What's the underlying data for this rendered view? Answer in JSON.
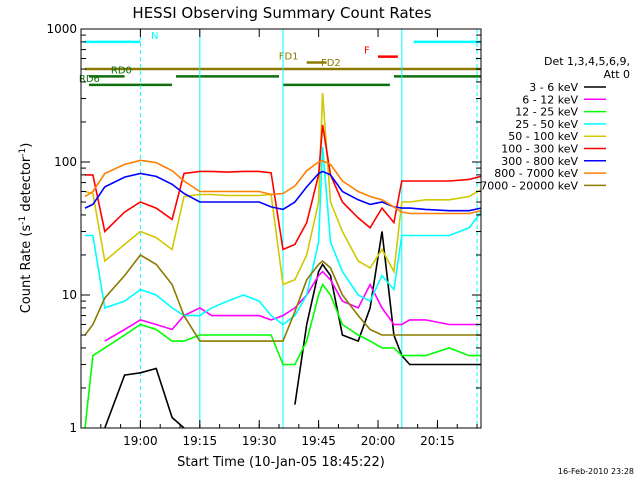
{
  "chart_data": {
    "type": "line",
    "title": "HESSI Observing Summary Count Rates",
    "xlabel": "Start Time (10-Jan-05 18:45:22)",
    "ylabel": "Count Rate (s",
    "ylabel_sup1": "-1",
    "ylabel_mid": " detector",
    "ylabel_sup2": "-1",
    "ylabel_end": ")",
    "y_scale": "log",
    "ylim": [
      1,
      1000
    ],
    "xlim": [
      "18:45",
      "20:26"
    ],
    "x_ticks": [
      "19:00",
      "19:15",
      "19:30",
      "19:45",
      "20:00",
      "20:15"
    ],
    "y_ticks": [
      "1",
      "10",
      "100",
      "1000"
    ],
    "grid": false,
    "timestamp": "16-Feb-2010 23:28",
    "legend": {
      "placement": "right",
      "header": [
        "Det 1,3,4,5,6,9,",
        "Att 0"
      ],
      "entries": [
        {
          "label": "3 - 6 keV",
          "color": "#000000"
        },
        {
          "label": "6 - 12 keV",
          "color": "#ff00ff"
        },
        {
          "label": "12 - 25 keV",
          "color": "#00ff00"
        },
        {
          "label": "25 - 50 keV",
          "color": "#00ffff"
        },
        {
          "label": "50 - 100 keV",
          "color": "#d2c800"
        },
        {
          "label": "100 - 300 keV",
          "color": "#ff0000"
        },
        {
          "label": "300 - 800 keV",
          "color": "#0000ff"
        },
        {
          "label": "800 - 7000 keV",
          "color": "#ff8000"
        },
        {
          "label": "7000 - 20000 keV",
          "color": "#8c7a00"
        }
      ]
    },
    "flags": [
      {
        "label": "N",
        "color": "#00ffff",
        "y": 800,
        "segments": [
          [
            "18:46",
            "19:00"
          ],
          [
            "20:09",
            "20:26"
          ]
        ]
      },
      {
        "label": "F",
        "color": "#ff0000",
        "y": 620,
        "segments": [
          [
            "20:00",
            "20:05"
          ]
        ]
      },
      {
        "label": "FD1",
        "color": "#8c7a00",
        "y": 560,
        "segments": [
          [
            "19:42",
            "19:47"
          ]
        ]
      },
      {
        "label": "FD2",
        "color": "#8c7a00",
        "y": 500,
        "segments": [
          [
            "18:46",
            "20:26"
          ]
        ]
      },
      {
        "label": "RD0",
        "color": "#107010",
        "y": 440,
        "segments": [
          [
            "18:47",
            "18:56"
          ],
          [
            "19:09",
            "19:35"
          ],
          [
            "20:04",
            "20:26"
          ]
        ]
      },
      {
        "label": "RD6",
        "color": "#107010",
        "y": 380,
        "segments": [
          [
            "18:47",
            "19:08"
          ],
          [
            "19:36",
            "20:03"
          ]
        ]
      }
    ],
    "vlines": [
      {
        "x": "19:00",
        "color": "#00ffff",
        "style": "dashed"
      },
      {
        "x": "19:15",
        "color": "#00ffff",
        "style": "solid"
      },
      {
        "x": "19:36",
        "color": "#00ffff",
        "style": "solid"
      },
      {
        "x": "20:06",
        "color": "#00ffff",
        "style": "solid"
      },
      {
        "x": "20:25",
        "color": "#00ffff",
        "style": "dashed"
      }
    ],
    "x": [
      "18:46",
      "18:48",
      "18:51",
      "18:56",
      "19:00",
      "19:04",
      "19:08",
      "19:11",
      "19:15",
      "19:18",
      "19:22",
      "19:26",
      "19:30",
      "19:33",
      "19:36",
      "19:39",
      "19:42",
      "19:45",
      "19:46",
      "19:48",
      "19:51",
      "19:55",
      "19:58",
      "20:01",
      "20:04",
      "20:06",
      "20:08",
      "20:12",
      "20:18",
      "20:23",
      "20:26"
    ],
    "series": [
      {
        "name": "3 - 6 keV",
        "color": "#000000",
        "values": [
          null,
          null,
          1,
          2.5,
          2.6,
          2.8,
          1.2,
          1,
          null,
          null,
          null,
          null,
          null,
          null,
          null,
          1.5,
          6,
          15,
          17,
          14,
          5,
          4.5,
          8,
          30,
          5,
          3.5,
          3,
          3,
          3,
          3,
          3
        ]
      },
      {
        "name": "6 - 12 keV",
        "color": "#ff00ff",
        "values": [
          null,
          null,
          4.5,
          5.5,
          6.5,
          6,
          5.5,
          7,
          8,
          7,
          7,
          7,
          7,
          6.5,
          7,
          8,
          10,
          14,
          15,
          13,
          9,
          8,
          12,
          8,
          6,
          6,
          6.5,
          6.5,
          6,
          6,
          6
        ]
      },
      {
        "name": "12 - 25 keV",
        "color": "#00ff00",
        "values": [
          1,
          3.5,
          4,
          5,
          6,
          5.5,
          4.5,
          4.5,
          5,
          5,
          5,
          5,
          5,
          5,
          3,
          3,
          4.5,
          10,
          12,
          10,
          6,
          5,
          4.5,
          4,
          4,
          3.5,
          3.5,
          3.5,
          4,
          3.5,
          3.5
        ]
      },
      {
        "name": "25 - 50 keV",
        "color": "#00ffff",
        "values": [
          28,
          28,
          8,
          9,
          11,
          10,
          8,
          7,
          7,
          8,
          9,
          10,
          9,
          7,
          6,
          7,
          10,
          25,
          130,
          25,
          15,
          10,
          9,
          14,
          11,
          28,
          28,
          28,
          28,
          32,
          42
        ]
      },
      {
        "name": "50 - 100 keV",
        "color": "#d2c800",
        "values": [
          60,
          58,
          18,
          24,
          30,
          27,
          22,
          55,
          57,
          57,
          56,
          56,
          56,
          57,
          12,
          13,
          20,
          50,
          330,
          50,
          30,
          18,
          16,
          22,
          15,
          50,
          50,
          52,
          52,
          55,
          62
        ]
      },
      {
        "name": "100 - 300 keV",
        "color": "#ff0000",
        "values": [
          80,
          80,
          30,
          42,
          50,
          45,
          37,
          82,
          85,
          85,
          84,
          85,
          85,
          83,
          22,
          24,
          35,
          80,
          190,
          80,
          50,
          38,
          32,
          45,
          35,
          72,
          72,
          72,
          72,
          74,
          78
        ]
      },
      {
        "name": "300 - 800 keV",
        "color": "#0000ff",
        "values": [
          45,
          48,
          65,
          77,
          82,
          78,
          68,
          58,
          50,
          50,
          50,
          50,
          50,
          46,
          44,
          50,
          65,
          82,
          85,
          80,
          60,
          52,
          48,
          50,
          46,
          45,
          45,
          44,
          43,
          43,
          45
        ]
      },
      {
        "name": "800 - 7000 keV",
        "color": "#ff8000",
        "values": [
          55,
          60,
          82,
          96,
          103,
          99,
          86,
          72,
          60,
          60,
          60,
          60,
          60,
          57,
          58,
          66,
          86,
          100,
          102,
          96,
          72,
          60,
          55,
          52,
          46,
          42,
          41,
          41,
          41,
          41,
          43
        ]
      },
      {
        "name": "7000 - 20000 keV",
        "color": "#8c7a00",
        "values": [
          5,
          6,
          9.5,
          14,
          20,
          17,
          12,
          7,
          4.5,
          4.5,
          4.5,
          4.5,
          4.5,
          4.5,
          4.5,
          7.5,
          13,
          17,
          18,
          16,
          10,
          7,
          5.5,
          5,
          5,
          5,
          5,
          5,
          5,
          5,
          5
        ]
      }
    ]
  }
}
